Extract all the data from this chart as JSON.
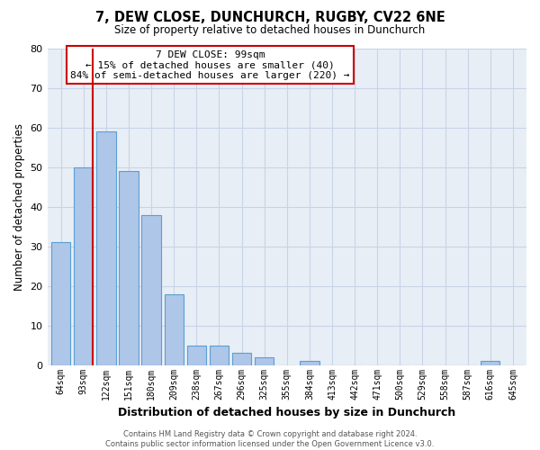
{
  "title": "7, DEW CLOSE, DUNCHURCH, RUGBY, CV22 6NE",
  "subtitle": "Size of property relative to detached houses in Dunchurch",
  "xlabel": "Distribution of detached houses by size in Dunchurch",
  "ylabel": "Number of detached properties",
  "bar_labels": [
    "64sqm",
    "93sqm",
    "122sqm",
    "151sqm",
    "180sqm",
    "209sqm",
    "238sqm",
    "267sqm",
    "296sqm",
    "325sqm",
    "355sqm",
    "384sqm",
    "413sqm",
    "442sqm",
    "471sqm",
    "500sqm",
    "529sqm",
    "558sqm",
    "587sqm",
    "616sqm",
    "645sqm"
  ],
  "bar_heights": [
    31,
    50,
    59,
    49,
    38,
    18,
    5,
    5,
    3,
    2,
    0,
    1,
    0,
    0,
    0,
    0,
    0,
    0,
    0,
    1,
    0
  ],
  "bar_color": "#aec6e8",
  "bar_edge_color": "#5a9fd4",
  "vline_color": "#cc0000",
  "ylim": [
    0,
    80
  ],
  "yticks": [
    0,
    10,
    20,
    30,
    40,
    50,
    60,
    70,
    80
  ],
  "annotation_title": "7 DEW CLOSE: 99sqm",
  "annotation_line1": "← 15% of detached houses are smaller (40)",
  "annotation_line2": "84% of semi-detached houses are larger (220) →",
  "annotation_box_color": "#ffffff",
  "annotation_box_edge": "#cc0000",
  "footer_line1": "Contains HM Land Registry data © Crown copyright and database right 2024.",
  "footer_line2": "Contains public sector information licensed under the Open Government Licence v3.0.",
  "background_color": "#ffffff",
  "plot_bg_color": "#e8eef5",
  "grid_color": "#c8d4e8"
}
